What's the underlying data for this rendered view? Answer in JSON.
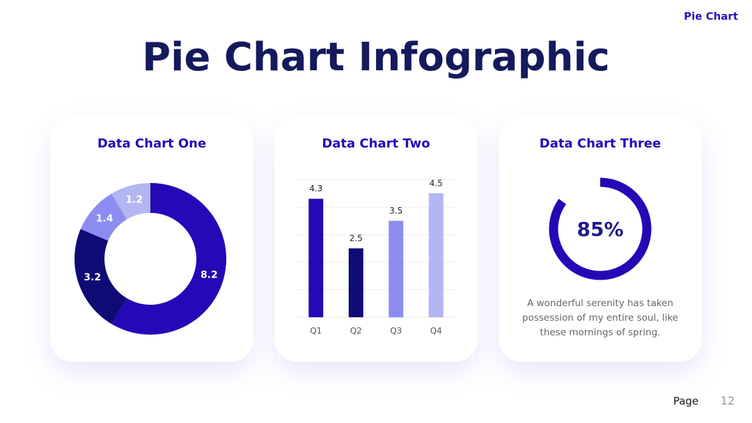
{
  "header": {
    "brand": "Pie Chart",
    "title": "Pie Chart Infographic"
  },
  "chart_data": [
    {
      "type": "donut",
      "title": "Data Chart One",
      "values": [
        8.2,
        3.2,
        1.4,
        1.2
      ],
      "colors": [
        "#2409b6",
        "#0e0b74",
        "#8b8ef0",
        "#b2b6f2"
      ]
    },
    {
      "type": "bar",
      "title": "Data Chart Two",
      "categories": [
        "Q1",
        "Q2",
        "Q3",
        "Q4"
      ],
      "values": [
        4.3,
        2.5,
        3.5,
        4.5
      ],
      "colors": [
        "#2409b6",
        "#0e0b74",
        "#8b8ef0",
        "#b2b6f2"
      ],
      "ylim": [
        0,
        5
      ],
      "yticks": [
        0,
        1,
        2,
        3,
        4,
        5
      ],
      "grid": true
    },
    {
      "type": "gauge",
      "title": "Data Chart Three",
      "values": [
        85
      ],
      "value_labels": [
        "85%"
      ],
      "ylim": [
        0,
        100
      ],
      "color": "#2409b6",
      "text": "A wonderful serenity has taken possession of my entire soul, like these mornings of spring."
    }
  ],
  "footer": {
    "label": "Page",
    "number": 12
  }
}
